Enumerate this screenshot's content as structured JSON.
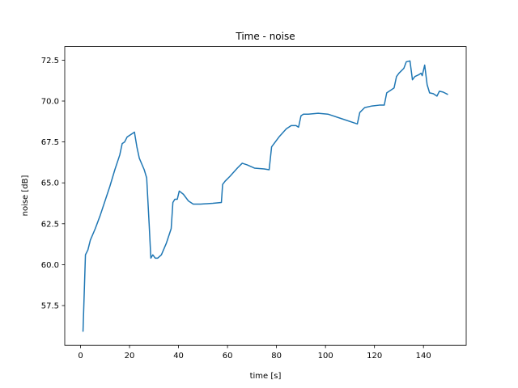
{
  "chart_data": {
    "type": "line",
    "title": "Time - noise",
    "x_label": "time [s]",
    "y_label": "noise [dB]",
    "x": [
      1,
      2,
      3,
      4,
      6,
      8,
      10,
      12,
      14,
      16,
      17,
      18,
      19,
      21,
      22,
      23,
      24,
      26,
      27,
      28,
      28.7,
      29.5,
      30.5,
      31.5,
      33,
      35,
      37,
      37.7,
      38.5,
      39.5,
      40.3,
      42,
      44,
      46,
      49,
      54,
      57.5,
      58,
      59,
      61,
      64,
      66,
      68,
      71,
      75,
      77,
      78,
      81,
      84,
      86,
      88,
      89,
      90,
      91,
      93,
      97,
      101,
      107,
      113,
      114,
      116,
      119,
      122,
      124,
      125,
      127,
      128,
      129,
      130,
      132,
      133,
      134.5,
      135.5,
      136.5,
      138,
      139,
      139.5,
      140.5,
      141.5,
      142.5,
      144,
      145.5,
      146.5,
      148,
      150
    ],
    "series": [
      {
        "name": "noise",
        "color": "#1f77b4",
        "values": [
          55.9,
          60.6,
          60.9,
          61.5,
          62.2,
          63.0,
          63.9,
          64.8,
          65.8,
          66.7,
          67.4,
          67.5,
          67.8,
          68.0,
          68.1,
          67.2,
          66.5,
          65.8,
          65.3,
          62.5,
          60.4,
          60.6,
          60.4,
          60.4,
          60.6,
          61.3,
          62.2,
          63.8,
          64.0,
          64.0,
          64.5,
          64.3,
          63.9,
          63.7,
          63.7,
          63.75,
          63.8,
          64.9,
          65.1,
          65.4,
          65.9,
          66.2,
          66.1,
          65.9,
          65.85,
          65.8,
          67.2,
          67.8,
          68.3,
          68.5,
          68.5,
          68.4,
          69.1,
          69.2,
          69.2,
          69.25,
          69.2,
          68.9,
          68.6,
          69.3,
          69.6,
          69.7,
          69.75,
          69.75,
          70.5,
          70.7,
          70.8,
          71.5,
          71.7,
          72.0,
          72.4,
          72.45,
          71.3,
          71.5,
          71.6,
          71.7,
          71.55,
          72.2,
          71.0,
          70.5,
          70.45,
          70.3,
          70.6,
          70.55,
          70.4
        ]
      }
    ],
    "xlim": [
      -6.45,
      157.45
    ],
    "xticks": [
      0,
      20,
      40,
      60,
      80,
      100,
      120,
      140
    ],
    "ylim": [
      55.07,
      73.33
    ],
    "yticks": [
      57.5,
      {
        "value": 60,
        "label": "60.0"
      },
      62.5,
      {
        "value": 65,
        "label": "65.0"
      },
      67.5,
      {
        "value": 70,
        "label": "70.0"
      },
      72.5
    ]
  }
}
